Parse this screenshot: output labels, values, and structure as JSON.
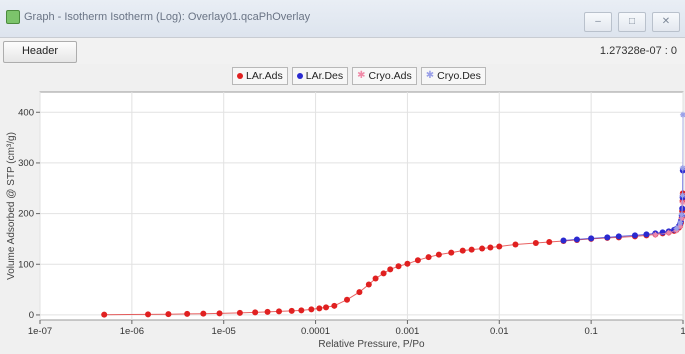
{
  "window": {
    "title": "Graph - Isotherm Isotherm (Log): Overlay01.qcaPhOverlay",
    "controls": [
      "minimize-icon",
      "maximize-icon",
      "close-icon"
    ]
  },
  "toolbar": {
    "header_label": "Header",
    "cursor_readout": "1.27328e-07 : 0"
  },
  "legend": [
    {
      "label": "LAr.Ads",
      "color": "#e02020",
      "marker": "circle"
    },
    {
      "label": "LAr.Des",
      "color": "#2a2ad0",
      "marker": "circle"
    },
    {
      "label": "Cryo.Ads",
      "color": "#f08aa8",
      "marker": "star"
    },
    {
      "label": "Cryo.Des",
      "color": "#9aa0e8",
      "marker": "star"
    }
  ],
  "chart_data": {
    "type": "scatter",
    "title": "",
    "xlabel": "Relative Pressure, P/Po",
    "ylabel": "Volume Adsorbed @ STP (cm³/g)",
    "xscale": "log",
    "xlim": [
      1e-07,
      1
    ],
    "ylim": [
      -10,
      440
    ],
    "x_ticks": [
      {
        "value": 1e-07,
        "label": "1e-07"
      },
      {
        "value": 1e-06,
        "label": "1e-06"
      },
      {
        "value": 1e-05,
        "label": "1e-05"
      },
      {
        "value": 0.0001,
        "label": "0.0001"
      },
      {
        "value": 0.001,
        "label": "0.001"
      },
      {
        "value": 0.01,
        "label": "0.01"
      },
      {
        "value": 0.1,
        "label": "0.1"
      },
      {
        "value": 1,
        "label": "1"
      }
    ],
    "y_ticks": [
      0,
      100,
      200,
      300,
      400
    ],
    "grid": true,
    "series": [
      {
        "name": "LAr.Ads",
        "color": "#e02020",
        "marker": "circle",
        "points": [
          [
            5e-07,
            0.5
          ],
          [
            1.5e-06,
            1
          ],
          [
            2.5e-06,
            1.5
          ],
          [
            4e-06,
            2
          ],
          [
            6e-06,
            2.5
          ],
          [
            9e-06,
            3
          ],
          [
            1.5e-05,
            4
          ],
          [
            2.2e-05,
            5
          ],
          [
            3e-05,
            6
          ],
          [
            4e-05,
            7
          ],
          [
            5.5e-05,
            8
          ],
          [
            7e-05,
            9
          ],
          [
            9e-05,
            11
          ],
          [
            0.00011,
            13
          ],
          [
            0.00013,
            15
          ],
          [
            0.00016,
            18
          ],
          [
            0.00022,
            30
          ],
          [
            0.0003,
            45
          ],
          [
            0.00038,
            60
          ],
          [
            0.00045,
            72
          ],
          [
            0.00055,
            82
          ],
          [
            0.00065,
            90
          ],
          [
            0.0008,
            96
          ],
          [
            0.001,
            101
          ],
          [
            0.0013,
            108
          ],
          [
            0.0017,
            114
          ],
          [
            0.0022,
            119
          ],
          [
            0.003,
            123
          ],
          [
            0.004,
            127
          ],
          [
            0.005,
            129
          ],
          [
            0.0065,
            131
          ],
          [
            0.008,
            133
          ],
          [
            0.01,
            135
          ],
          [
            0.015,
            139
          ],
          [
            0.025,
            142
          ],
          [
            0.035,
            144
          ],
          [
            0.05,
            146
          ],
          [
            0.07,
            148
          ],
          [
            0.1,
            150
          ],
          [
            0.15,
            152
          ],
          [
            0.2,
            153
          ],
          [
            0.3,
            155
          ],
          [
            0.4,
            157
          ],
          [
            0.5,
            159
          ],
          [
            0.6,
            161
          ],
          [
            0.7,
            163
          ],
          [
            0.8,
            166
          ],
          [
            0.85,
            168
          ],
          [
            0.9,
            172
          ],
          [
            0.93,
            176
          ],
          [
            0.95,
            182
          ],
          [
            0.97,
            192
          ],
          [
            0.98,
            205
          ],
          [
            0.99,
            225
          ],
          [
            0.995,
            240
          ]
        ]
      },
      {
        "name": "LAr.Des",
        "color": "#2a2ad0",
        "marker": "circle",
        "points": [
          [
            0.995,
            285
          ],
          [
            0.99,
            232
          ],
          [
            0.98,
            210
          ],
          [
            0.97,
            196
          ],
          [
            0.95,
            186
          ],
          [
            0.93,
            180
          ],
          [
            0.9,
            175
          ],
          [
            0.85,
            170
          ],
          [
            0.8,
            168
          ],
          [
            0.7,
            165
          ],
          [
            0.6,
            163
          ],
          [
            0.5,
            161
          ],
          [
            0.4,
            159
          ],
          [
            0.3,
            157
          ],
          [
            0.2,
            155
          ],
          [
            0.15,
            153
          ],
          [
            0.1,
            151
          ],
          [
            0.07,
            149
          ],
          [
            0.05,
            147
          ]
        ]
      },
      {
        "name": "Cryo.Ads",
        "color": "#f08aa8",
        "marker": "star",
        "points": [
          [
            0.5,
            158
          ],
          [
            0.7,
            162
          ],
          [
            0.85,
            167
          ],
          [
            0.93,
            175
          ],
          [
            0.97,
            190
          ],
          [
            0.99,
            222
          ]
        ]
      },
      {
        "name": "Cryo.Des",
        "color": "#9aa0e8",
        "marker": "star",
        "points": [
          [
            0.999,
            395
          ],
          [
            0.995,
            290
          ],
          [
            0.99,
            236
          ],
          [
            0.97,
            198
          ],
          [
            0.93,
            182
          ],
          [
            0.85,
            171
          ]
        ]
      }
    ]
  }
}
